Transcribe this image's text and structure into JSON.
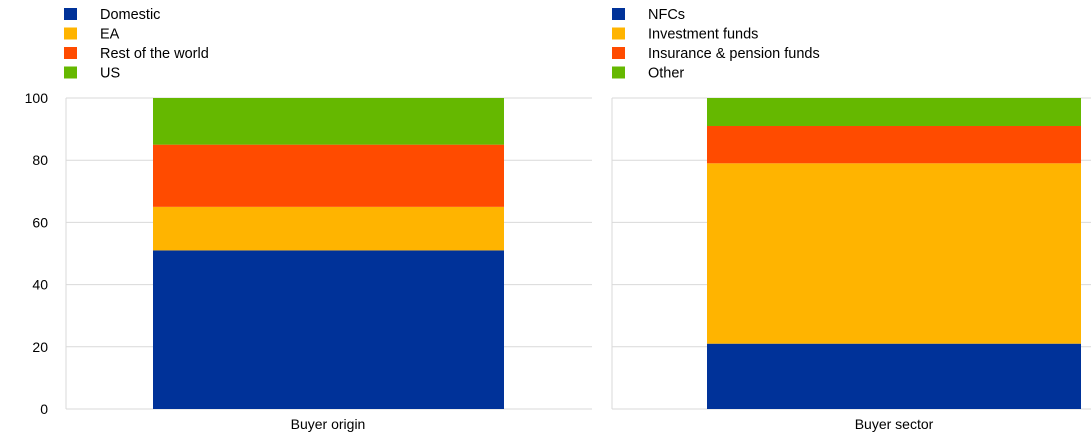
{
  "chart_data": [
    {
      "type": "bar",
      "stacked": true,
      "categories": [
        "Buyer origin"
      ],
      "ylim": [
        0,
        100
      ],
      "yticks": [
        "0",
        "20",
        "40",
        "60",
        "80",
        "100"
      ],
      "legend_position": "top-left",
      "grid": true,
      "series": [
        {
          "name": "Domestic",
          "color": "#003299",
          "values": [
            51
          ]
        },
        {
          "name": "EA",
          "color": "#FFB400",
          "values": [
            14
          ]
        },
        {
          "name": "Rest of the world",
          "color": "#FF4B00",
          "values": [
            20
          ]
        },
        {
          "name": "US",
          "color": "#65B800",
          "values": [
            15
          ]
        }
      ]
    },
    {
      "type": "bar",
      "stacked": true,
      "categories": [
        "Buyer sector"
      ],
      "ylim": [
        0,
        100
      ],
      "legend_position": "top-left",
      "grid": true,
      "series": [
        {
          "name": "NFCs",
          "color": "#003299",
          "values": [
            21
          ]
        },
        {
          "name": "Investment funds",
          "color": "#FFB400",
          "values": [
            58
          ]
        },
        {
          "name": "Insurance & pension funds",
          "color": "#FF4B00",
          "values": [
            12
          ]
        },
        {
          "name": "Other",
          "color": "#65B800",
          "values": [
            9
          ]
        }
      ]
    }
  ]
}
